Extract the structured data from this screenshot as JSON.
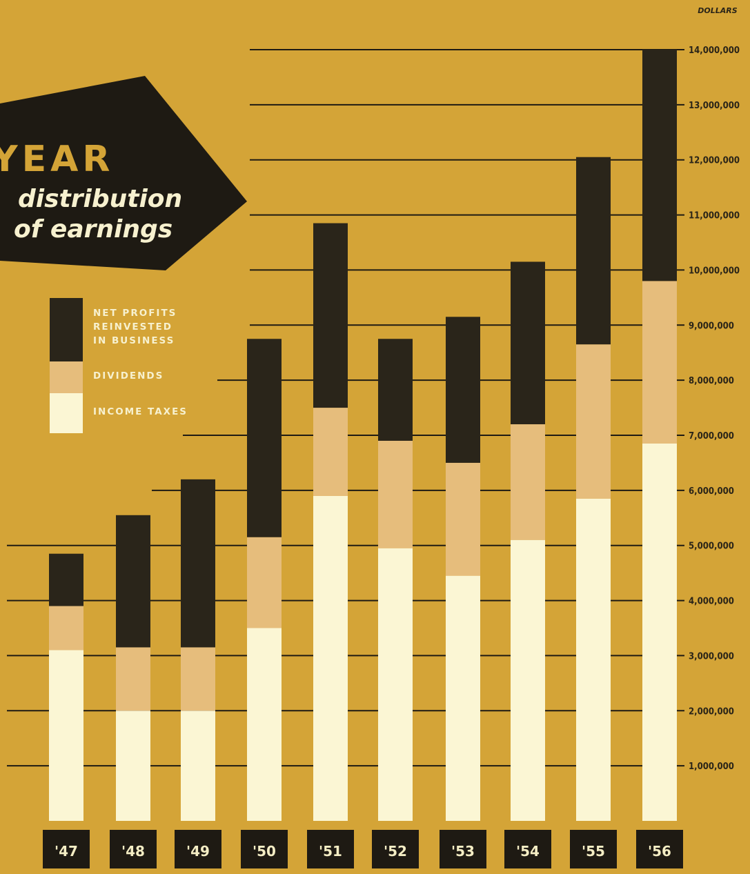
{
  "chart_data": {
    "type": "bar",
    "stacked": true,
    "title_line1": "YEAR",
    "title_line2": "distribution",
    "title_line3": "of earnings",
    "ylabel": "DOLLARS",
    "ylim": [
      0,
      14000000
    ],
    "yticks": [
      "1,000,000",
      "2,000,000",
      "3,000,000",
      "4,000,000",
      "5,000,000",
      "6,000,000",
      "7,000,000",
      "8,000,000",
      "9,000,000",
      "10,000,000",
      "11,000,000",
      "12,000,000",
      "13,000,000",
      "14,000,000"
    ],
    "categories": [
      "'47",
      "'48",
      "'49",
      "'50",
      "'51",
      "'52",
      "'53",
      "'54",
      "'55",
      "'56"
    ],
    "series": [
      {
        "name": "INCOME TAXES",
        "color": "#FBF6D4",
        "values": [
          3100000,
          2000000,
          2000000,
          3500000,
          5900000,
          4950000,
          4450000,
          5100000,
          5850000,
          6850000
        ]
      },
      {
        "name": "DIVIDENDS",
        "color": "#E6BD7C",
        "values": [
          800000,
          1150000,
          1150000,
          1650000,
          1600000,
          1950000,
          2050000,
          2100000,
          2800000,
          2950000
        ]
      },
      {
        "name": "NET PROFITS REINVESTED IN BUSINESS",
        "color": "#2A251A",
        "values": [
          950000,
          2400000,
          3050000,
          3600000,
          3350000,
          1850000,
          2650000,
          2950000,
          3400000,
          4200000
        ]
      }
    ],
    "legend": {
      "items": [
        {
          "lines": [
            "NET PROFITS",
            "REINVESTED",
            "IN BUSINESS"
          ],
          "color": "#2A251A"
        },
        {
          "lines": [
            "DIVIDENDS"
          ],
          "color": "#E6BD7C"
        },
        {
          "lines": [
            "INCOME TAXES"
          ],
          "color": "#FBF6D4"
        }
      ]
    },
    "grid": true,
    "legend_placement": "left"
  }
}
